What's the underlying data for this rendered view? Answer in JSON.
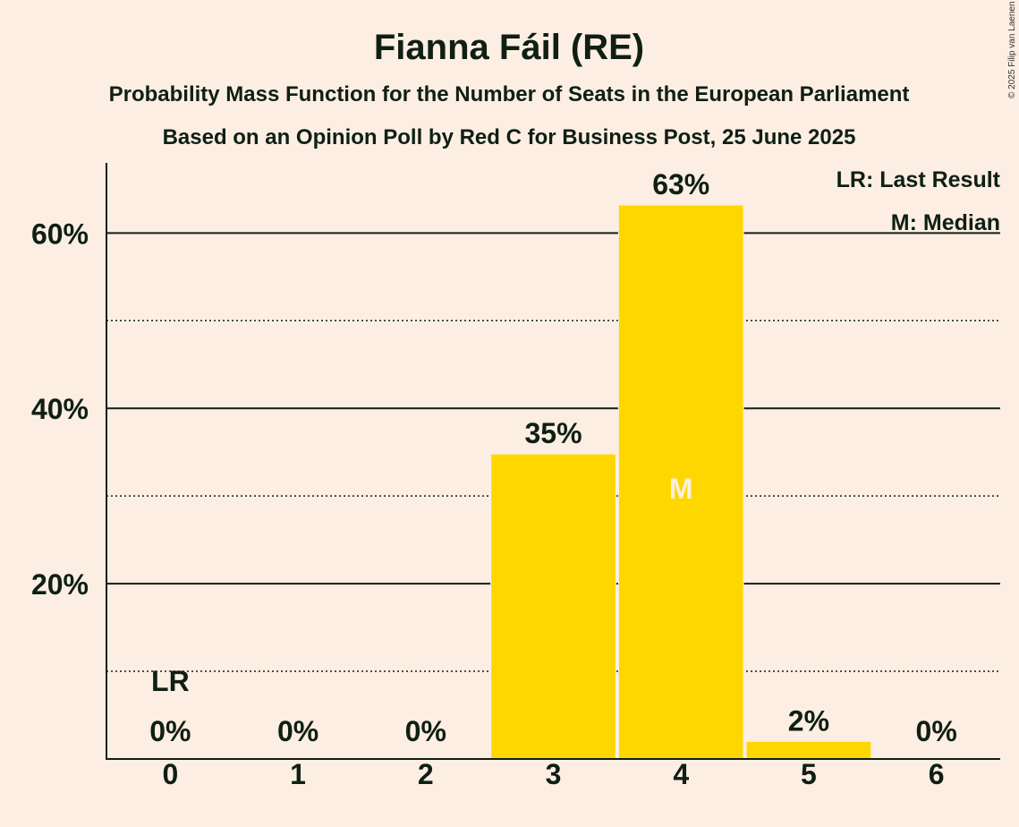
{
  "chart_data": {
    "type": "bar",
    "title": "Fianna Fáil (RE)",
    "subtitle1": "Probability Mass Function for the Number of Seats in the European Parliament",
    "subtitle2": "Based on an Opinion Poll by Red C for Business Post, 25 June 2025",
    "categories": [
      "0",
      "1",
      "2",
      "3",
      "4",
      "5",
      "6"
    ],
    "values": [
      0,
      0,
      0,
      34.8,
      63.2,
      2.0,
      0
    ],
    "value_labels": [
      "0%",
      "0%",
      "0%",
      "35%",
      "63%",
      "2%",
      "0%"
    ],
    "ylim": [
      0,
      68
    ],
    "major_ticks": [
      20,
      40,
      60
    ],
    "major_tick_labels": [
      "20%",
      "40%",
      "60%"
    ],
    "minor_ticks": [
      10,
      30,
      50
    ],
    "last_result_index": 0,
    "last_result_label": "LR",
    "median_index": 4,
    "median_label": "M",
    "legend": [
      "LR: Last Result",
      "M: Median"
    ],
    "bar_color": "#FFD700",
    "copyright": "© 2025 Filip van Laenen"
  }
}
